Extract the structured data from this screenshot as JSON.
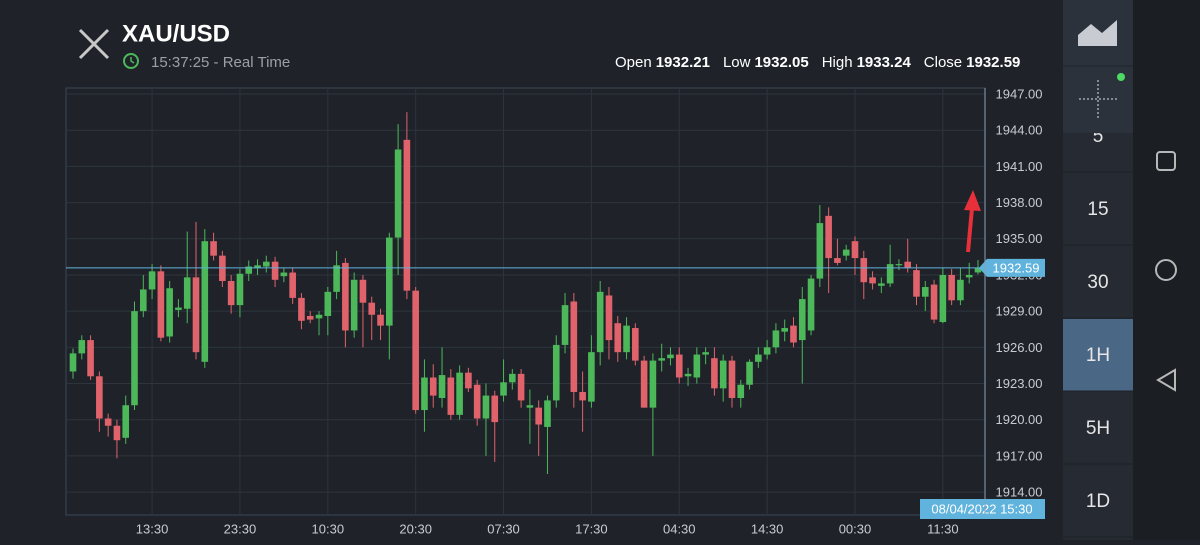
{
  "header": {
    "title": "XAU/USD",
    "time": "15:37:25 - Real Time"
  },
  "ohlc_labels": {
    "open": "Open",
    "low": "Low",
    "high": "High",
    "close": "Close"
  },
  "chart_data": {
    "type": "candlestick",
    "categories": [
      null,
      null,
      null,
      null,
      null,
      null,
      null,
      null,
      null,
      "13:30",
      null,
      null,
      null,
      null,
      null,
      null,
      null,
      null,
      null,
      "23:30",
      null,
      null,
      null,
      null,
      null,
      null,
      null,
      null,
      null,
      "10:30",
      null,
      null,
      null,
      null,
      null,
      null,
      null,
      null,
      null,
      "20:30",
      null,
      null,
      null,
      null,
      null,
      null,
      null,
      null,
      null,
      "07:30",
      null,
      null,
      null,
      null,
      null,
      null,
      null,
      null,
      null,
      "17:30",
      null,
      null,
      null,
      null,
      null,
      null,
      null,
      null,
      null,
      "04:30",
      null,
      null,
      null,
      null,
      null,
      null,
      null,
      null,
      null,
      "14:30",
      null,
      null,
      null,
      null,
      null,
      null,
      null,
      null,
      null,
      "00:30",
      null,
      null,
      null,
      null,
      null,
      null,
      null,
      null,
      null,
      "11:30",
      null,
      null,
      null,
      null
    ],
    "open": [
      1924.0,
      1925.5,
      1926.6,
      1923.6,
      1920.1,
      1919.5,
      1918.5,
      1921.2,
      1929.0,
      1930.8,
      1932.3,
      1926.9,
      1929.1,
      1929.2,
      1931.8,
      1924.8,
      1934.8,
      1933.6,
      1931.5,
      1929.5,
      1932.1,
      1932.6,
      1932.7,
      1933.1,
      1931.9,
      1932.2,
      1930.1,
      1928.6,
      1928.4,
      1928.6,
      1930.6,
      1933.0,
      1927.4,
      1931.6,
      1929.7,
      1928.7,
      1927.8,
      1935.1,
      1943.2,
      1930.7,
      1920.8,
      1923.5,
      1921.8,
      1923.5,
      1920.4,
      1923.9,
      1922.9,
      1920.1,
      1922.0,
      1922.0,
      1923.1,
      1923.8,
      1921.0,
      1921.0,
      1919.4,
      1921.6,
      1926.2,
      1929.8,
      1922.3,
      1921.5,
      1925.6,
      1930.3,
      1928.0,
      1925.6,
      1927.6,
      1924.9,
      1921.0,
      1924.9,
      1925.1,
      1925.4,
      1923.6,
      1923.5,
      1925.4,
      1925.1,
      1922.6,
      1924.9,
      1921.8,
      1922.9,
      1924.8,
      1925.4,
      1926.0,
      1927.3,
      1927.8,
      1926.6,
      1927.4,
      1931.7,
      1936.9,
      1933.4,
      1933.6,
      1934.8,
      1933.4,
      1931.8,
      1931.1,
      1931.3,
      1932.8,
      1933.1,
      1932.4,
      1930.2,
      1931.2,
      1928.1,
      1932.0,
      1929.9,
      1931.8,
      1932.21
    ],
    "high": [
      1925.9,
      1927.0,
      1927.0,
      1924.0,
      1920.5,
      1920.0,
      1922.0,
      1929.8,
      1932.0,
      1932.9,
      1932.8,
      1931.5,
      1930.0,
      1935.6,
      1936.4,
      1935.8,
      1935.5,
      1934.0,
      1932.0,
      1932.5,
      1933.2,
      1933.3,
      1933.6,
      1933.5,
      1932.6,
      1932.6,
      1930.5,
      1929.0,
      1929.0,
      1931.0,
      1934.0,
      1933.4,
      1932.2,
      1932.0,
      1930.2,
      1929.2,
      1935.5,
      1944.5,
      1945.5,
      1931.0,
      1925.0,
      1924.6,
      1926.0,
      1924.2,
      1924.5,
      1924.3,
      1923.3,
      1923.0,
      1922.4,
      1925.0,
      1924.2,
      1924.2,
      1922.5,
      1921.6,
      1922.0,
      1927.0,
      1930.5,
      1930.5,
      1924.0,
      1927.0,
      1931.5,
      1931.0,
      1928.6,
      1928.5,
      1928.0,
      1925.3,
      1925.5,
      1926.3,
      1926.0,
      1926.0,
      1924.3,
      1926.0,
      1926.0,
      1926.0,
      1925.4,
      1925.3,
      1923.3,
      1925.0,
      1926.0,
      1926.6,
      1928.0,
      1928.3,
      1928.5,
      1931.0,
      1932.0,
      1937.8,
      1937.6,
      1935.0,
      1934.5,
      1935.2,
      1934.0,
      1932.3,
      1931.8,
      1934.5,
      1933.3,
      1935.0,
      1932.9,
      1931.5,
      1931.6,
      1932.6,
      1932.5,
      1932.6,
      1933.0,
      1933.24
    ],
    "low": [
      1923.4,
      1925.0,
      1923.3,
      1919.0,
      1918.6,
      1916.8,
      1918.0,
      1920.8,
      1928.5,
      1930.0,
      1926.5,
      1926.4,
      1928.5,
      1928.0,
      1925.0,
      1924.3,
      1933.2,
      1931.0,
      1928.8,
      1928.5,
      1931.5,
      1932.0,
      1932.2,
      1931.0,
      1931.4,
      1929.6,
      1927.5,
      1928.0,
      1927.0,
      1927.0,
      1930.0,
      1926.0,
      1926.8,
      1926.0,
      1926.6,
      1926.6,
      1925.0,
      1932.0,
      1930.0,
      1920.5,
      1919.0,
      1921.0,
      1921.0,
      1920.0,
      1920.0,
      1922.3,
      1919.5,
      1917.0,
      1916.5,
      1921.5,
      1922.5,
      1921.0,
      1918.0,
      1917.0,
      1915.5,
      1921.0,
      1925.5,
      1921.0,
      1919.0,
      1921.0,
      1924.5,
      1925.0,
      1924.8,
      1925.0,
      1924.5,
      1921.0,
      1917.0,
      1924.0,
      1924.5,
      1923.0,
      1922.8,
      1923.0,
      1924.6,
      1922.0,
      1921.5,
      1921.0,
      1921.0,
      1922.5,
      1924.3,
      1925.0,
      1925.5,
      1926.5,
      1926.0,
      1923.0,
      1927.0,
      1931.0,
      1930.5,
      1932.8,
      1933.2,
      1932.0,
      1930.0,
      1930.8,
      1930.5,
      1931.0,
      1932.4,
      1932.2,
      1929.5,
      1929.0,
      1928.0,
      1928.0,
      1929.5,
      1929.5,
      1931.3,
      1932.05
    ],
    "close": [
      1925.5,
      1926.6,
      1923.6,
      1920.1,
      1919.5,
      1918.3,
      1921.2,
      1929.0,
      1930.8,
      1932.3,
      1926.8,
      1930.9,
      1929.3,
      1931.8,
      1925.6,
      1934.8,
      1933.6,
      1931.5,
      1929.5,
      1932.1,
      1932.7,
      1932.8,
      1933.1,
      1931.6,
      1932.2,
      1930.1,
      1928.2,
      1928.3,
      1928.7,
      1930.6,
      1932.8,
      1927.4,
      1931.6,
      1929.7,
      1928.7,
      1927.8,
      1935.1,
      1942.4,
      1930.7,
      1920.8,
      1923.5,
      1922.0,
      1923.7,
      1920.4,
      1923.9,
      1922.6,
      1920.1,
      1922.0,
      1919.8,
      1923.1,
      1923.8,
      1921.6,
      1921.2,
      1919.6,
      1921.6,
      1926.2,
      1929.5,
      1922.3,
      1921.6,
      1925.6,
      1930.6,
      1926.6,
      1925.6,
      1927.8,
      1924.9,
      1921.0,
      1924.9,
      1925.1,
      1925.4,
      1923.5,
      1923.8,
      1925.4,
      1925.6,
      1922.6,
      1924.9,
      1921.8,
      1922.9,
      1924.8,
      1925.4,
      1926.0,
      1927.4,
      1927.6,
      1926.4,
      1930.0,
      1931.7,
      1936.3,
      1933.4,
      1933.0,
      1934.1,
      1933.4,
      1931.4,
      1931.3,
      1931.3,
      1932.9,
      1932.9,
      1932.6,
      1930.2,
      1931.0,
      1928.3,
      1932.0,
      1929.9,
      1931.6,
      1932.0,
      1932.59
    ],
    "up_color": "#4cb85a",
    "down_color": "#e0636c",
    "price_line_color": "#5fb3dc",
    "ylim": [
      1912.1,
      1947.5
    ],
    "yticks": [
      {
        "value": 1914,
        "label": "1914.00"
      },
      {
        "value": 1917,
        "label": "1917.00"
      },
      {
        "value": 1920,
        "label": "1920.00"
      },
      {
        "value": 1923,
        "label": "1923.00"
      },
      {
        "value": 1926,
        "label": "1926.00"
      },
      {
        "value": 1929,
        "label": "1929.00"
      },
      {
        "value": 1932,
        "label": "1932.00"
      },
      {
        "value": 1935,
        "label": "1935.00"
      },
      {
        "value": 1938,
        "label": "1938.00"
      },
      {
        "value": 1941,
        "label": "1941.00"
      },
      {
        "value": 1944,
        "label": "1944.00"
      },
      {
        "value": 1947,
        "label": "1947.00"
      }
    ],
    "grid": true,
    "cursor_label": "08/04/2022 15:30"
  },
  "timeframes": [
    {
      "label": "5"
    },
    {
      "label": "15"
    },
    {
      "label": "30"
    },
    {
      "label": "1H",
      "selected": true
    },
    {
      "label": "5H"
    },
    {
      "label": "1D"
    }
  ]
}
